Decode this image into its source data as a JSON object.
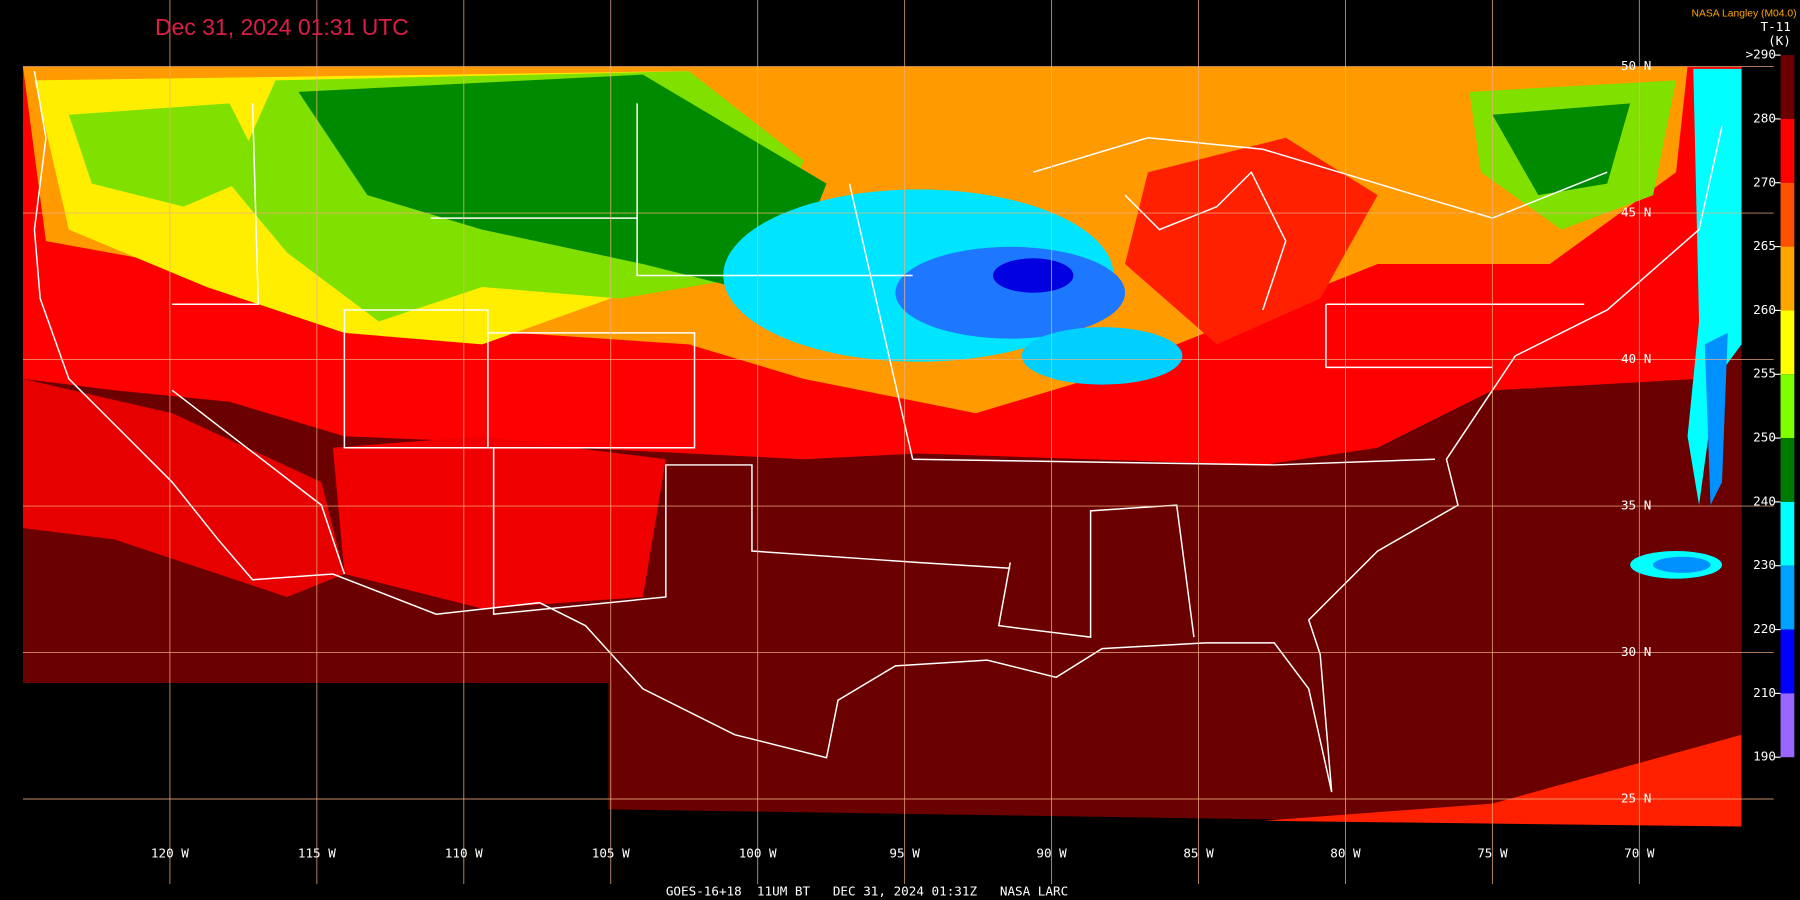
{
  "title": "Dec 31, 2024 01:31 UTC",
  "credit": "NASA Langley (M04.0)",
  "product": "T-11",
  "unit": "(K)",
  "footer": "GOES-16+18  11UM BT   DEC 31, 2024 01:31Z   NASA LARC",
  "colorbar": {
    "ticks": [
      {
        "value": 290,
        "label": ">290"
      },
      280,
      270,
      265,
      260,
      255,
      250,
      240,
      230,
      220,
      210,
      190
    ],
    "colors": [
      "#6a0000",
      "#ff0000",
      "#ff5000",
      "#ffa500",
      "#ffff00",
      "#80ff00",
      "#007a00",
      "#00ffff",
      "#00a0ff",
      "#0000ff",
      "#9966ff"
    ]
  },
  "latitudes": [
    {
      "value": 50,
      "label": "50 N"
    },
    {
      "value": 45,
      "label": "45 N"
    },
    {
      "value": 40,
      "label": "40 N"
    },
    {
      "value": 35,
      "label": "35 N"
    },
    {
      "value": 30,
      "label": "30 N"
    },
    {
      "value": 25,
      "label": "25 N"
    }
  ],
  "longitudes": [
    {
      "value": -120,
      "label": "120 W"
    },
    {
      "value": -115,
      "label": "115 W"
    },
    {
      "value": -110,
      "label": "110 W"
    },
    {
      "value": -105,
      "label": "105 W"
    },
    {
      "value": -100,
      "label": "100 W"
    },
    {
      "value": -95,
      "label": "95 W"
    },
    {
      "value": -90,
      "label": "90 W"
    },
    {
      "value": -85,
      "label": "85 W"
    },
    {
      "value": -80,
      "label": "80 W"
    },
    {
      "value": -75,
      "label": "75 W"
    },
    {
      "value": -70,
      "label": "70 W"
    }
  ]
}
